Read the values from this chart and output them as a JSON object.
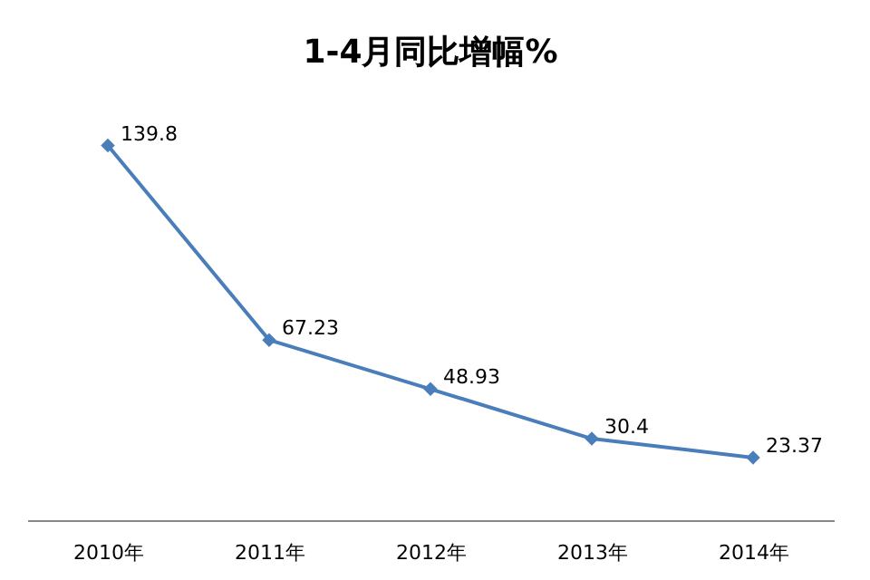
{
  "chart_data": {
    "type": "line",
    "title": "1-4月同比增幅%",
    "categories": [
      "2010年",
      "2011年",
      "2012年",
      "2013年",
      "2014年"
    ],
    "series": [
      {
        "color": "#4a7ebb",
        "values": [
          139.8,
          67.23,
          48.93,
          30.4,
          23.37
        ]
      }
    ],
    "tick_labels": "x",
    "data_labels": true,
    "marker": "diamond",
    "line_style": "solid",
    "grid": false
  }
}
